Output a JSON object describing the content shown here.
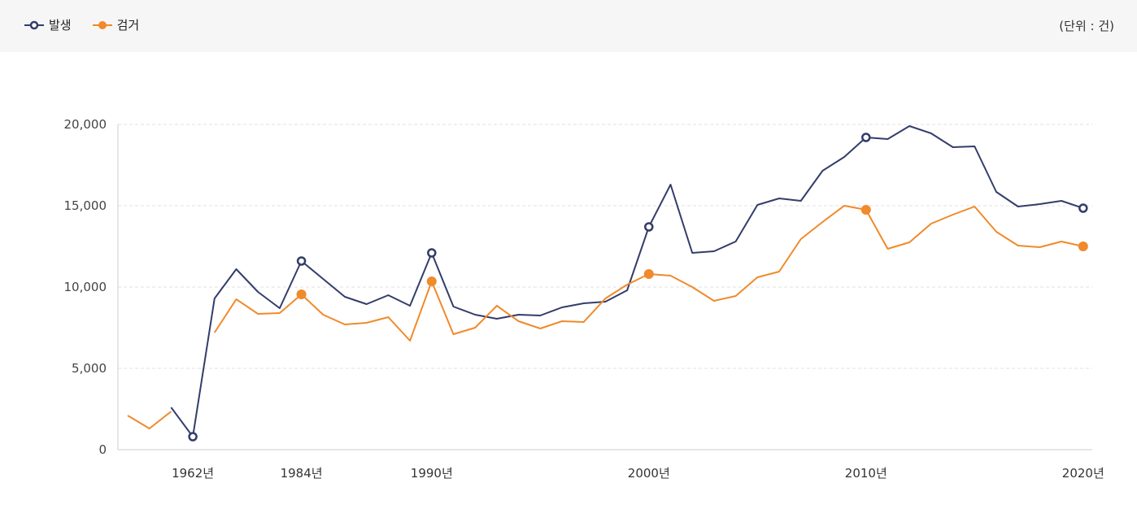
{
  "legend": {
    "occurrence_label": "발생",
    "arrest_label": "검거"
  },
  "unit_label": "(단위 : 건)",
  "colors": {
    "occurrence": "#333d6a",
    "arrest": "#f08a2a",
    "grid": "#e2e2e2",
    "axis": "#cccccc"
  },
  "chart_data": {
    "type": "line",
    "title": "",
    "xlabel": "",
    "ylabel": "",
    "ylim": [
      0,
      20000
    ],
    "y_ticks": [
      0,
      5000,
      10000,
      15000,
      20000
    ],
    "y_tick_labels": [
      "0",
      "5,000",
      "10,000",
      "15,000",
      "20,000"
    ],
    "x_tick_labels": [
      {
        "index": 3,
        "label": "1962년"
      },
      {
        "index": 8,
        "label": "1984년"
      },
      {
        "index": 14,
        "label": "1990년"
      },
      {
        "index": 24,
        "label": "2000년"
      },
      {
        "index": 34,
        "label": "2010년"
      },
      {
        "index": 44,
        "label": "2020년"
      }
    ],
    "point_count": 45,
    "grid": true,
    "legend_position": "top-left",
    "series": [
      {
        "name": "발생",
        "marker": "hollow-circle",
        "marker_indices": [
          3,
          8,
          14,
          24,
          34,
          44
        ],
        "values": [
          null,
          null,
          2600,
          800,
          9300,
          11100,
          9700,
          8700,
          11600,
          10500,
          9400,
          8950,
          9500,
          8850,
          12100,
          8800,
          8300,
          8050,
          8300,
          8250,
          8750,
          9000,
          9100,
          9800,
          13700,
          16300,
          12100,
          12200,
          12800,
          15050,
          15450,
          15300,
          17150,
          18000,
          19200,
          19100,
          19900,
          19450,
          18600,
          18650,
          15850,
          14950,
          15100,
          15300,
          14850
        ]
      },
      {
        "name": "검거",
        "marker": "filled-circle",
        "marker_indices": [
          8,
          14,
          24,
          34,
          44
        ],
        "values": [
          2100,
          1300,
          2350,
          null,
          7200,
          9250,
          8350,
          8400,
          9550,
          8300,
          7700,
          7800,
          8150,
          6700,
          10350,
          7100,
          7500,
          8850,
          7900,
          7450,
          7900,
          7850,
          9300,
          10150,
          10800,
          10700,
          10000,
          9150,
          9450,
          10600,
          10950,
          12950,
          14000,
          15000,
          14750,
          12350,
          12750,
          13900,
          14450,
          14950,
          13400,
          12550,
          12450,
          12800,
          12500
        ]
      }
    ]
  }
}
